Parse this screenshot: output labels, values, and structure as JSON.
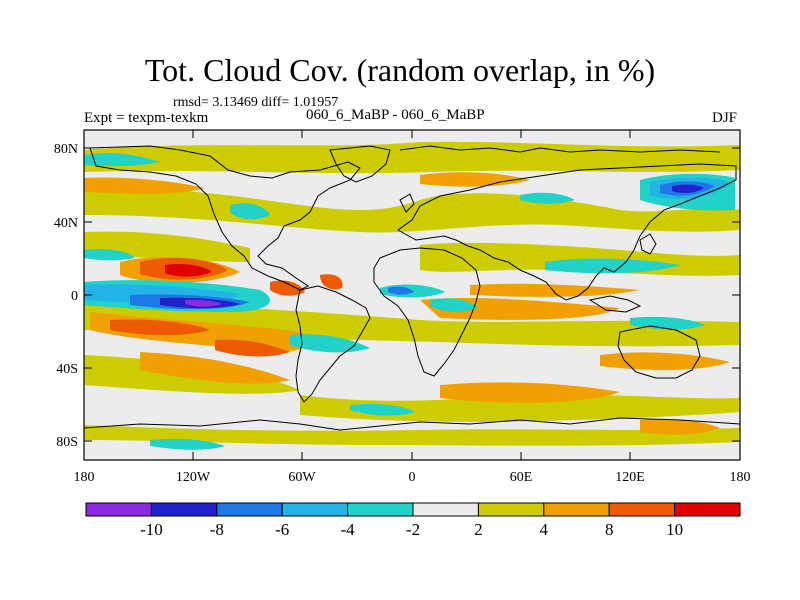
{
  "header": {
    "title": "Tot. Cloud Cov. (random overlap, in %)",
    "stats": "rmsd= 3.13469 diff= 1.01957",
    "experiment": "Expt = texpm-texkm",
    "case_label": "060_6_MaBP - 060_6_MaBP",
    "season": "DJF"
  },
  "axes": {
    "y_ticks": [
      "80N",
      "40N",
      "0",
      "40S",
      "80S"
    ],
    "x_ticks": [
      "180",
      "120W",
      "60W",
      "0",
      "60E",
      "120E",
      "180"
    ]
  },
  "colorbar": {
    "labels": [
      "-10",
      "-8",
      "-6",
      "-4",
      "-2",
      "2",
      "4",
      "8",
      "10"
    ],
    "colors": [
      "#8a2be2",
      "#2222cc",
      "#1e78e6",
      "#22b4e6",
      "#22d2c8",
      "#ececec",
      "#cccc00",
      "#f0a000",
      "#ee5a00",
      "#e00000"
    ]
  },
  "palette": {
    "neutral": "#ececec",
    "yellow": "#cccc00",
    "orange": "#f0a000",
    "red_orange": "#ee5a00",
    "red": "#e00000",
    "cyan": "#22d2c8",
    "light_blue": "#22b4e6",
    "blue": "#1e78e6",
    "dark_blue": "#2222cc",
    "purple": "#8a2be2"
  }
}
